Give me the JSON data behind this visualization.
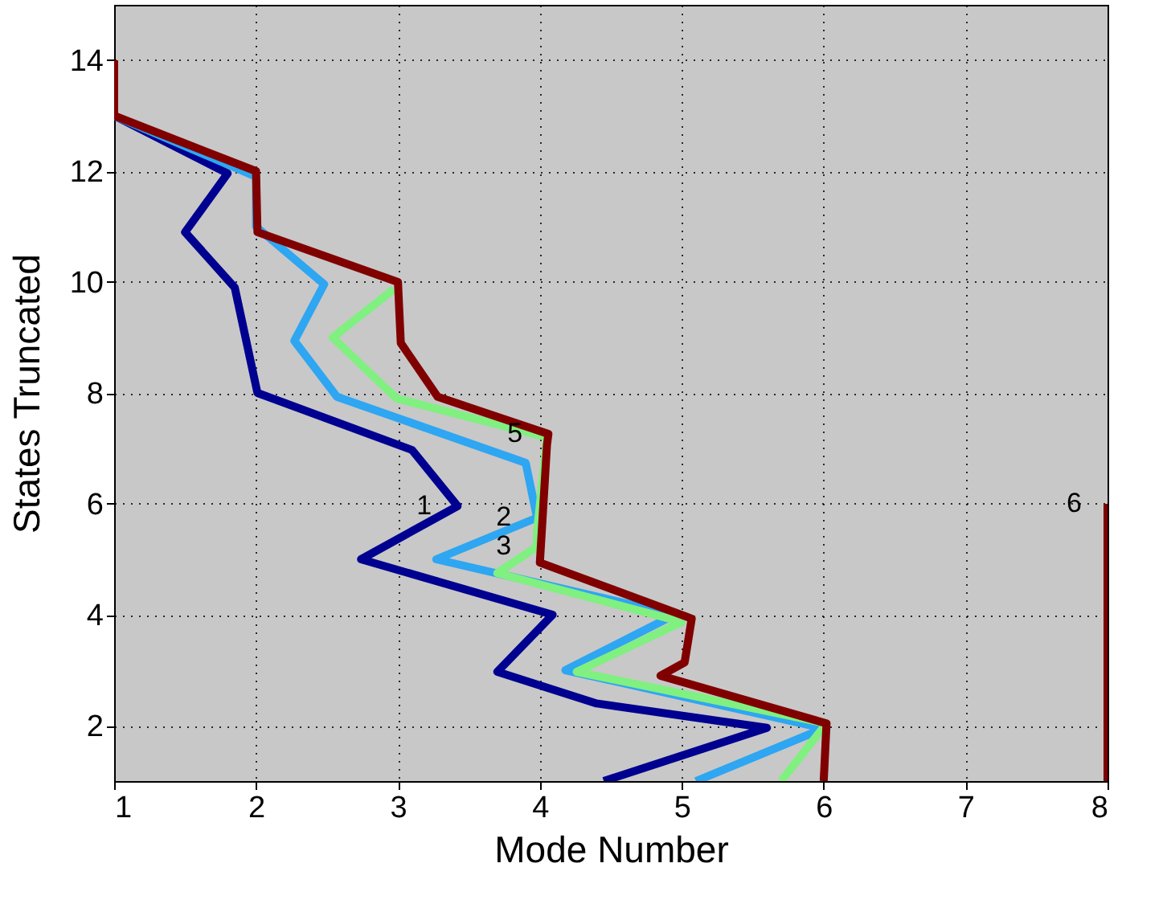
{
  "chart_data": {
    "type": "line",
    "xlabel": "Mode Number",
    "ylabel": "States Truncated",
    "xlim": [
      1,
      8
    ],
    "ylim": [
      1,
      15
    ],
    "xticks": [
      1,
      2,
      3,
      4,
      5,
      6,
      7,
      8
    ],
    "yticks": [
      2,
      4,
      6,
      8,
      10,
      12,
      14
    ],
    "grid": true,
    "series": [
      {
        "name": "1",
        "color": "#000090",
        "x": [
          4.45,
          5.6,
          4.4,
          3.7,
          4.09,
          2.74,
          3.42,
          3.1,
          2.01,
          1.85,
          1.5,
          1.8,
          1
        ],
        "values": [
          1,
          1.96,
          2.4,
          2.97,
          4,
          5,
          5.96,
          6.97,
          8,
          9.9,
          10.9,
          11.96,
          13
        ]
      },
      {
        "name": "2",
        "color": "#2ea6f2",
        "x": [
          5.1,
          6,
          4.18,
          4.95,
          3.27,
          3.98,
          3.98,
          3.9,
          2.57,
          2.27,
          2.48,
          2,
          2,
          1
        ],
        "values": [
          1,
          1.95,
          3,
          4,
          5,
          5.75,
          5.75,
          6.74,
          7.93,
          8.94,
          9.96,
          11,
          11.9,
          13
        ]
      },
      {
        "name": "3",
        "color": "#80f080",
        "x": [
          5.7,
          6.02,
          4.26,
          5,
          3.7,
          3.98,
          3.98,
          4.05,
          2.99,
          2.54,
          2.97
        ],
        "values": [
          1,
          2.04,
          2.97,
          3.87,
          4.75,
          5.23,
          5.5,
          7.2,
          7.9,
          9,
          9.87
        ]
      },
      {
        "name": "5",
        "color": "#800000",
        "x": [
          6,
          6.02,
          4.85,
          5.02,
          5.07,
          4,
          4.05,
          4.06,
          3.28,
          3.02,
          3,
          2.01,
          2,
          1,
          1
        ],
        "values": [
          1,
          2.04,
          2.9,
          3.14,
          3.93,
          4.94,
          7.06,
          7.26,
          7.93,
          8.9,
          10,
          10.9,
          12,
          13,
          14
        ]
      },
      {
        "name": "6",
        "color": "#800000",
        "x": [
          8,
          8
        ],
        "values": [
          1,
          6
        ]
      }
    ]
  }
}
